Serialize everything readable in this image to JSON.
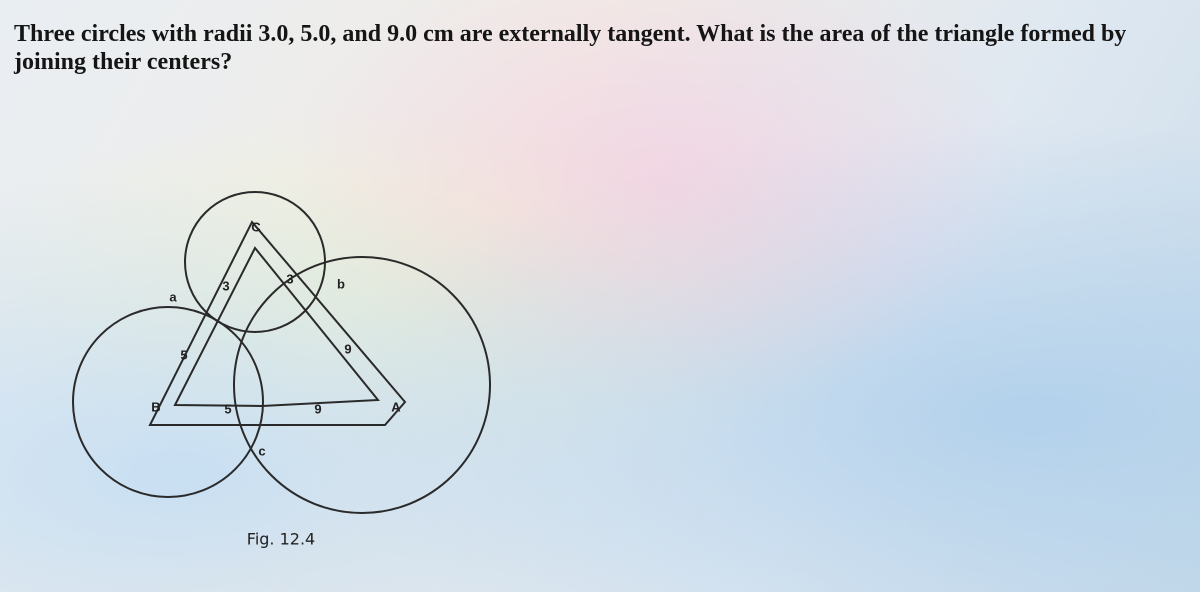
{
  "question": "Three circles with radii 3.0, 5.0, and 9.0 cm are externally tangent. What is the area of the triangle formed by joining their centers?",
  "figure": {
    "caption": "Fig. 12.4",
    "labels": [
      "C",
      "3",
      "3",
      "b",
      "a",
      "5",
      "9",
      "B",
      "5",
      "9",
      "A",
      "c"
    ]
  }
}
